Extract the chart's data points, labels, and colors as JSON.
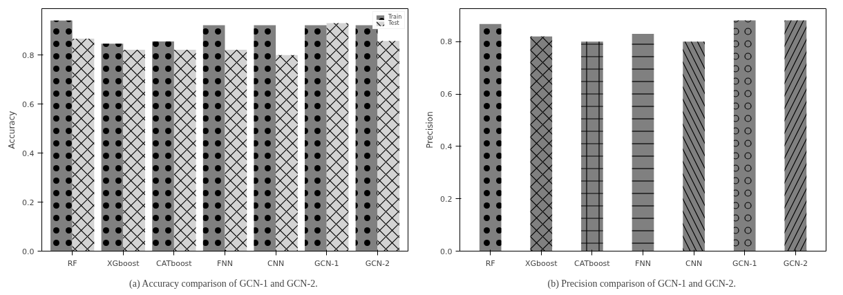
{
  "chart_data": [
    {
      "type": "bar",
      "ylabel": "Accuracy",
      "categories": [
        "RF",
        "XGboost",
        "CATboost",
        "FNN",
        "CNN",
        "GCN-1",
        "GCN-2"
      ],
      "series": [
        {
          "name": "Train",
          "color": "#808080",
          "values": [
            0.941,
            0.847,
            0.856,
            0.922,
            0.922,
            0.922,
            0.922
          ]
        },
        {
          "name": "Test",
          "color": "#d3d3d3",
          "values": [
            0.867,
            0.822,
            0.822,
            0.822,
            0.8,
            0.931,
            0.858
          ]
        }
      ],
      "ylim": [
        0,
        0.99
      ],
      "yticks": [
        {
          "value": 0,
          "label": "0.0"
        },
        {
          "value": 0.2,
          "label": "0.2"
        },
        {
          "value": 0.4,
          "label": "0.4"
        },
        {
          "value": 0.6,
          "label": "0.6"
        },
        {
          "value": 0.8,
          "label": "0.8"
        }
      ],
      "grid": false,
      "legend": "top right",
      "annotations": [
        "(a)  Accuracy comparison of GCN-1 and GCN-2."
      ]
    },
    {
      "type": "bar",
      "ylabel": "Precision",
      "categories": [
        "RF",
        "XGboost",
        "CATboost",
        "FNN",
        "CNN",
        "GCN-1",
        "GCN-2"
      ],
      "values": [
        0.867,
        0.82,
        0.8,
        0.83,
        0.8,
        0.881,
        0.881
      ],
      "color": "#808080",
      "ylim": [
        0,
        0.926
      ],
      "yticks": [
        {
          "value": 0,
          "label": "0.0"
        },
        {
          "value": 0.2,
          "label": "0.2"
        },
        {
          "value": 0.4,
          "label": "0.4"
        },
        {
          "value": 0.6,
          "label": "0.6"
        },
        {
          "value": 0.8,
          "label": "0.8"
        }
      ],
      "grid": false,
      "annotations": [
        "(b)  Precision comparison of GCN-1 and GCN-2."
      ]
    }
  ]
}
